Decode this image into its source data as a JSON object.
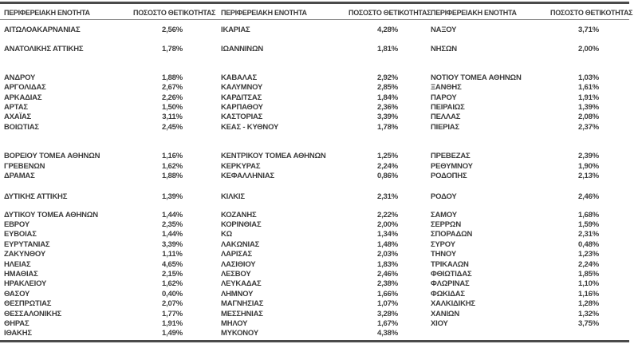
{
  "table": {
    "header": {
      "region_label": "ΠΕΡΙΦΕΡΕΙΑΚΗ ΕΝΟΤΗΤΑ",
      "value_label": "ΠΟΣΟΣΤΟ ΘΕΤΙΚΟΤΗΤΑΣ"
    },
    "colors": {
      "text": "#3b3b3b",
      "thick_rule": "#4a4a4a",
      "thin_rule": "#8a8a8a",
      "background": "#ffffff"
    },
    "rows": [
      {
        "type": "data",
        "cells": [
          [
            "ΑΙΤΩΛΟΑΚΑΡΝΑΝΙΑΣ",
            "2,56%"
          ],
          [
            "ΙΚΑΡΙΑΣ",
            "4,28%"
          ],
          [
            "ΝΑΞΟΥ",
            "3,71%"
          ]
        ]
      },
      {
        "type": "spacer",
        "h": 12
      },
      {
        "type": "data",
        "cells": [
          [
            "ΑΝΑΤΟΛΙΚΗΣ ΑΤΤΙΚΗΣ",
            "1,78%"
          ],
          [
            "ΙΩΑΝΝΙΝΩΝ",
            "1,81%"
          ],
          [
            "ΝΗΣΩΝ",
            "2,00%"
          ]
        ]
      },
      {
        "type": "spacer",
        "h": 23
      },
      {
        "type": "data",
        "cells": [
          [
            "ΑΝΔΡΟΥ",
            "1,88%"
          ],
          [
            "ΚΑΒΑΛΑΣ",
            "2,92%"
          ],
          [
            "ΝΟΤΙΟΥ ΤΟΜΕΑ ΑΘΗΝΩΝ",
            "1,03%"
          ]
        ]
      },
      {
        "type": "data",
        "cells": [
          [
            "ΑΡΓΟΛΙΔΑΣ",
            "2,67%"
          ],
          [
            "ΚΑΛΥΜΝΟΥ",
            "2,85%"
          ],
          [
            "ΞΑΝΘΗΣ",
            "1,61%"
          ]
        ]
      },
      {
        "type": "data",
        "cells": [
          [
            "ΑΡΚΑΔΙΑΣ",
            "2,26%"
          ],
          [
            "ΚΑΡΔΙΤΣΑΣ",
            "1,84%"
          ],
          [
            "ΠΑΡΟΥ",
            "1,91%"
          ]
        ]
      },
      {
        "type": "data",
        "cells": [
          [
            "ΑΡΤΑΣ",
            "1,50%"
          ],
          [
            "ΚΑΡΠΑΘΟΥ",
            "2,36%"
          ],
          [
            "ΠΕΙΡΑΙΩΣ",
            "1,39%"
          ]
        ]
      },
      {
        "type": "data",
        "cells": [
          [
            "ΑΧΑΪΑΣ",
            "3,11%"
          ],
          [
            "ΚΑΣΤΟΡΙΑΣ",
            "3,39%"
          ],
          [
            "ΠΕΛΛΑΣ",
            "2,08%"
          ]
        ]
      },
      {
        "type": "data",
        "cells": [
          [
            "ΒΟΙΩΤΙΑΣ",
            "2,45%"
          ],
          [
            "ΚΕΑΣ - ΚΥΘΝΟΥ",
            "1,78%"
          ],
          [
            "ΠΙΕΡΙΑΣ",
            "2,37%"
          ]
        ]
      },
      {
        "type": "spacer",
        "h": 24
      },
      {
        "type": "data",
        "cells": [
          [
            "ΒΟΡΕΙΟΥ ΤΟΜΕΑ ΑΘΗΝΩΝ",
            "1,16%"
          ],
          [
            "ΚΕΝΤΡΙΚΟΥ ΤΟΜΕΑ ΑΘΗΝΩΝ",
            "1,25%"
          ],
          [
            "ΠΡΕΒΕΖΑΣ",
            "2,39%"
          ]
        ]
      },
      {
        "type": "data",
        "cells": [
          [
            "ΓΡΕΒΕΝΩΝ",
            "1,62%"
          ],
          [
            "ΚΕΡΚΥΡΑΣ",
            "2,24%"
          ],
          [
            "ΡΕΘΥΜΝΟΥ",
            "1,90%"
          ]
        ]
      },
      {
        "type": "data",
        "cells": [
          [
            "ΔΡΑΜΑΣ",
            "1,88%"
          ],
          [
            "ΚΕΦΑΛΛΗΝΙΑΣ",
            "0,86%"
          ],
          [
            "ΡΟΔΟΠΗΣ",
            "2,13%"
          ]
        ]
      },
      {
        "type": "spacer",
        "h": 14
      },
      {
        "type": "data",
        "cells": [
          [
            "ΔΥΤΙΚΗΣ ΑΤΤΙΚΗΣ",
            "1,39%"
          ],
          [
            "ΚΙΛΚΙΣ",
            "2,31%"
          ],
          [
            "ΡΟΔΟΥ",
            "2,46%"
          ]
        ]
      },
      {
        "type": "spacer",
        "h": 10
      },
      {
        "type": "data",
        "cells": [
          [
            "ΔΥΤΙΚΟΥ ΤΟΜΕΑ ΑΘΗΝΩΝ",
            "1,44%"
          ],
          [
            "ΚΟΖΑΝΗΣ",
            "2,22%"
          ],
          [
            "ΣΑΜΟΥ",
            "1,68%"
          ]
        ]
      },
      {
        "type": "data",
        "cells": [
          [
            "ΕΒΡΟΥ",
            "2,35%"
          ],
          [
            "ΚΟΡΙΝΘΙΑΣ",
            "2,00%"
          ],
          [
            "ΣΕΡΡΩΝ",
            "1,59%"
          ]
        ]
      },
      {
        "type": "data",
        "cells": [
          [
            "ΕΥΒΟΙΑΣ",
            "1,44%"
          ],
          [
            "ΚΩ",
            "1,34%"
          ],
          [
            "ΣΠΟΡΑΔΩΝ",
            "2,31%"
          ]
        ]
      },
      {
        "type": "data",
        "cells": [
          [
            "ΕΥΡΥΤΑΝΙΑΣ",
            "3,39%"
          ],
          [
            "ΛΑΚΩΝΙΑΣ",
            "1,48%"
          ],
          [
            "ΣΥΡΟΥ",
            "0,48%"
          ]
        ]
      },
      {
        "type": "data",
        "cells": [
          [
            "ΖΑΚΥΝΘΟΥ",
            "1,11%"
          ],
          [
            "ΛΑΡΙΣΑΣ",
            "2,03%"
          ],
          [
            "ΤΗΝΟΥ",
            "1,23%"
          ]
        ]
      },
      {
        "type": "data",
        "cells": [
          [
            "ΗΛΕΙΑΣ",
            "4,65%"
          ],
          [
            "ΛΑΣΙΘΙΟΥ",
            "1,83%"
          ],
          [
            "ΤΡΙΚΑΛΩΝ",
            "2,24%"
          ]
        ]
      },
      {
        "type": "data",
        "cells": [
          [
            "ΗΜΑΘΙΑΣ",
            "2,15%"
          ],
          [
            "ΛΕΣΒΟΥ",
            "2,46%"
          ],
          [
            "ΦΘΙΩΤΙΔΑΣ",
            "1,85%"
          ]
        ]
      },
      {
        "type": "data",
        "cells": [
          [
            "ΗΡΑΚΛΕΙΟΥ",
            "1,62%"
          ],
          [
            "ΛΕΥΚΑΔΑΣ",
            "2,38%"
          ],
          [
            "ΦΛΩΡΙΝΑΣ",
            "1,10%"
          ]
        ]
      },
      {
        "type": "data",
        "cells": [
          [
            "ΘΑΣΟΥ",
            "0,40%"
          ],
          [
            "ΛΗΜΝΟΥ",
            "1,66%"
          ],
          [
            "ΦΩΚΙΔΑΣ",
            "1,16%"
          ]
        ]
      },
      {
        "type": "data",
        "cells": [
          [
            "ΘΕΣΠΡΩΤΙΑΣ",
            "2,07%"
          ],
          [
            "ΜΑΓΝΗΣΙΑΣ",
            "1,07%"
          ],
          [
            "ΧΑΛΚΙΔΙΚΗΣ",
            "1,28%"
          ]
        ]
      },
      {
        "type": "data",
        "cells": [
          [
            "ΘΕΣΣΑΛΟΝΙΚΗΣ",
            "1,77%"
          ],
          [
            "ΜΕΣΣΗΝΙΑΣ",
            "3,28%"
          ],
          [
            "ΧΑΝΙΩΝ",
            "1,32%"
          ]
        ]
      },
      {
        "type": "data",
        "cells": [
          [
            "ΘΗΡΑΣ",
            "1,91%"
          ],
          [
            "ΜΗΛΟΥ",
            "1,67%"
          ],
          [
            "ΧΙΟΥ",
            "3,75%"
          ]
        ]
      },
      {
        "type": "data",
        "cells": [
          [
            "ΙΘΑΚΗΣ",
            "1,49%"
          ],
          [
            "ΜΥΚΟΝΟΥ",
            "4,38%"
          ],
          [
            "",
            ""
          ]
        ]
      }
    ]
  }
}
